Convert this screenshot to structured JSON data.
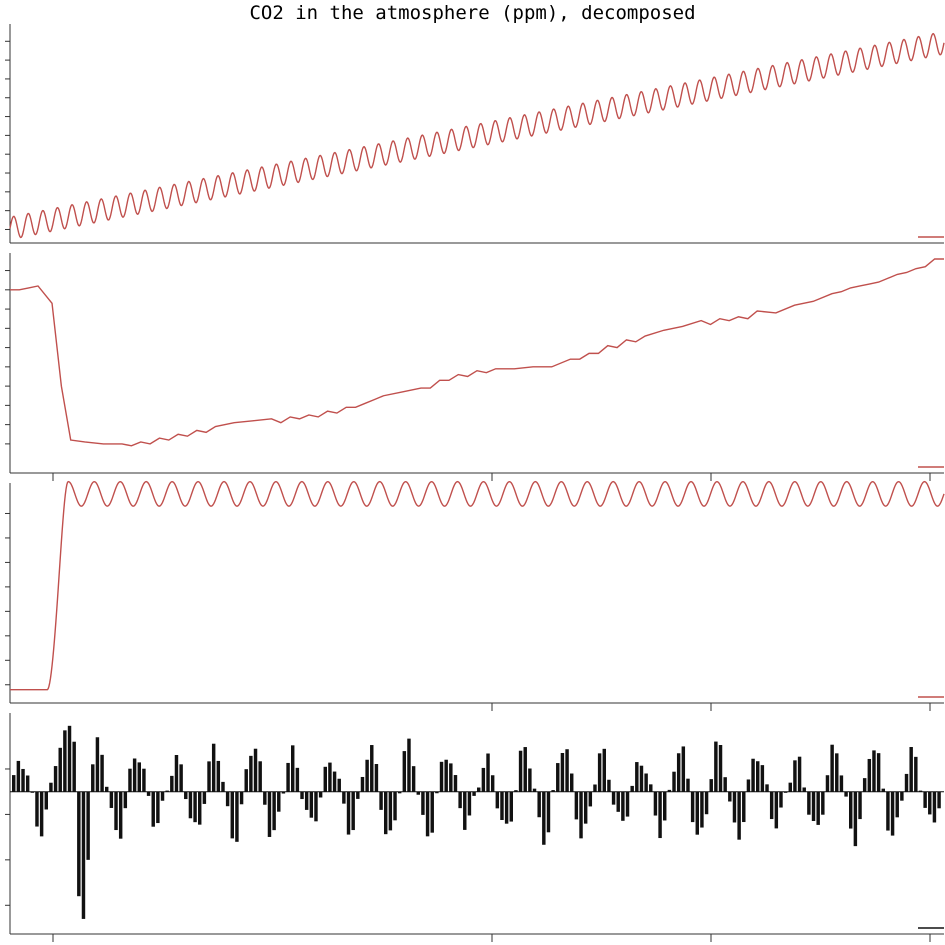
{
  "title": "CO2 in the atmosphere (ppm), decomposed",
  "colors": {
    "line": "#c0504d",
    "residual": "#111111",
    "axis": "#333333",
    "background": "#ffffff"
  },
  "chart_data": [
    {
      "panel": "observed",
      "type": "line",
      "ylim": [
        313,
        368
      ],
      "trend": {
        "x_start": 0,
        "x_end": 1,
        "y_start": 315.3,
        "y_end": 364.6
      },
      "seasonal_amplitude": 3.0,
      "cycles": 64,
      "y_ticks": [
        315,
        320,
        325,
        330,
        335,
        340,
        345,
        350,
        355,
        360,
        365
      ],
      "x_ticks": [],
      "legend_swatch": "bottom-right",
      "grid": false
    },
    {
      "panel": "trend",
      "type": "line",
      "ylim": [
        -1.2,
        9.6
      ],
      "x": [
        0,
        0.01,
        0.02,
        0.03,
        0.045,
        0.055,
        0.065,
        0.08,
        0.1,
        0.12,
        0.13,
        0.14,
        0.15,
        0.16,
        0.17,
        0.18,
        0.19,
        0.2,
        0.21,
        0.22,
        0.24,
        0.26,
        0.28,
        0.29,
        0.3,
        0.31,
        0.32,
        0.33,
        0.34,
        0.35,
        0.36,
        0.37,
        0.38,
        0.39,
        0.4,
        0.42,
        0.44,
        0.45,
        0.46,
        0.47,
        0.48,
        0.49,
        0.5,
        0.51,
        0.52,
        0.53,
        0.54,
        0.56,
        0.58,
        0.6,
        0.61,
        0.62,
        0.63,
        0.64,
        0.65,
        0.66,
        0.67,
        0.68,
        0.7,
        0.72,
        0.74,
        0.75,
        0.76,
        0.77,
        0.78,
        0.79,
        0.8,
        0.82,
        0.84,
        0.86,
        0.88,
        0.89,
        0.9,
        0.91,
        0.92,
        0.93,
        0.94,
        0.95,
        0.96,
        0.97,
        0.98,
        0.99,
        1.0
      ],
      "y": [
        8.0,
        8.0,
        8.1,
        8.2,
        7.3,
        3.0,
        0.2,
        0.1,
        0.0,
        0.0,
        -0.1,
        0.1,
        0.0,
        0.3,
        0.2,
        0.5,
        0.4,
        0.7,
        0.6,
        0.9,
        1.1,
        1.2,
        1.3,
        1.1,
        1.4,
        1.3,
        1.5,
        1.4,
        1.7,
        1.6,
        1.9,
        1.9,
        2.1,
        2.3,
        2.5,
        2.7,
        2.9,
        2.9,
        3.3,
        3.3,
        3.6,
        3.5,
        3.8,
        3.7,
        3.9,
        3.9,
        3.9,
        4.0,
        4.0,
        4.4,
        4.4,
        4.7,
        4.7,
        5.1,
        5.0,
        5.4,
        5.3,
        5.6,
        5.9,
        6.1,
        6.4,
        6.2,
        6.5,
        6.4,
        6.6,
        6.5,
        6.9,
        6.8,
        7.2,
        7.4,
        7.8,
        7.9,
        8.1,
        8.2,
        8.3,
        8.4,
        8.6,
        8.8,
        8.9,
        9.1,
        9.2,
        9.6,
        9.6
      ],
      "y_ticks": [
        0,
        1,
        2,
        3,
        4,
        5,
        6,
        7,
        8,
        9
      ],
      "x_ticks": [],
      "legend_swatch": "bottom-right",
      "grid": false
    },
    {
      "panel": "seasonal",
      "type": "line",
      "ylim": [
        -0.5,
        8.0
      ],
      "ramp": {
        "x_start": 0.04,
        "x_end": 0.062,
        "y_before": -0.2,
        "y_after": 7.8
      },
      "seasonal_amplitude": 0.5,
      "cycles": 36,
      "y_ticks": [
        0,
        1,
        2,
        3,
        4,
        5,
        6,
        7
      ],
      "x_ticks": [],
      "legend_swatch": "bottom-right",
      "grid": false
    },
    {
      "panel": "residual",
      "type": "bar",
      "ylim": [
        -6.0,
        3.2
      ],
      "bars": 200,
      "y_ticks": [
        -5,
        -3,
        -1,
        1
      ],
      "x_ticks": [],
      "legend_swatch": "bottom-right",
      "grid": false
    }
  ]
}
